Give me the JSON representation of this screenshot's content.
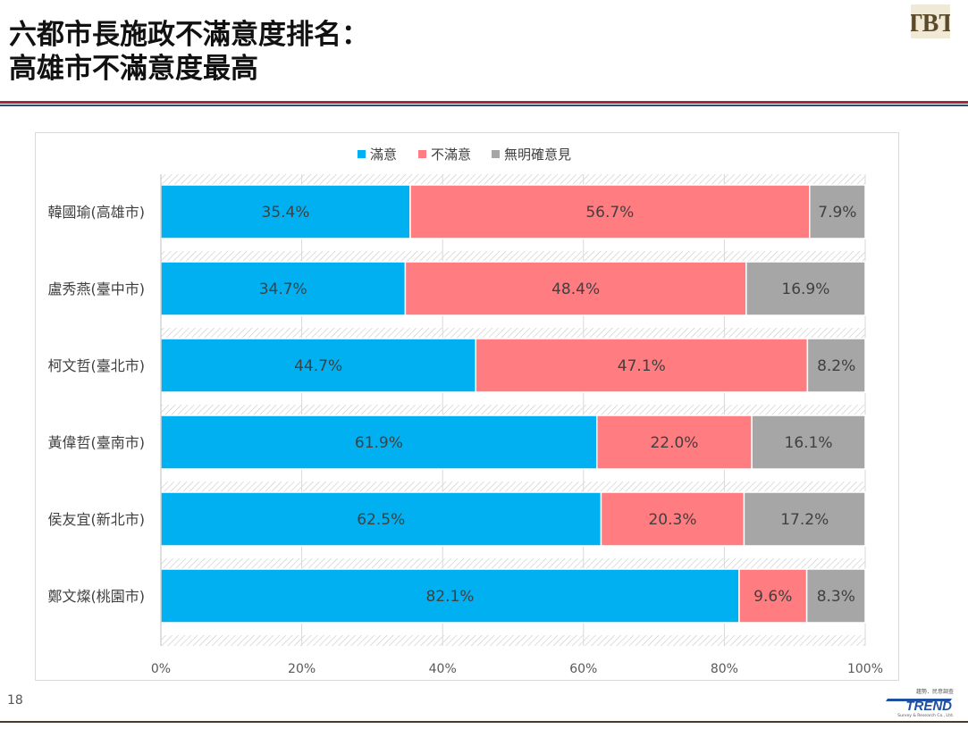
{
  "slide": {
    "title_line1": "六都市長施政不滿意度排名：",
    "title_line2": "高雄市不滿意度最高",
    "page_number": "18",
    "logo_text": "TBT",
    "trend_logo": {
      "top": "趨勢．民意調查",
      "main": "TREND",
      "sub": "Survey & Research Co., Ltd."
    }
  },
  "colors": {
    "satisfied": "#00b0f0",
    "dissatisfied": "#ff7c80",
    "no_opinion": "#a6a6a6",
    "accent_red": "#a3273e",
    "accent_blue": "#2c4a7a"
  },
  "chart_data": {
    "type": "bar",
    "orientation": "horizontal",
    "stacked": "percent",
    "categories": [
      "韓國瑜(高雄市)",
      "盧秀燕(臺中市)",
      "柯文哲(臺北市)",
      "黃偉哲(臺南市)",
      "侯友宜(新北市)",
      "鄭文燦(桃園市)"
    ],
    "series": [
      {
        "name": "滿意",
        "color": "#00b0f0",
        "values": [
          35.4,
          34.7,
          44.7,
          61.9,
          62.5,
          82.1
        ],
        "labels": [
          "35.4%",
          "34.7%",
          "44.7%",
          "61.9%",
          "62.5%",
          "82.1%"
        ]
      },
      {
        "name": "不滿意",
        "color": "#ff7c80",
        "values": [
          56.7,
          48.4,
          47.1,
          22.0,
          20.3,
          9.6
        ],
        "labels": [
          "56.7%",
          "48.4%",
          "47.1%",
          "22.0%",
          "20.3%",
          "9.6%"
        ]
      },
      {
        "name": "無明確意見",
        "color": "#a6a6a6",
        "values": [
          7.9,
          16.9,
          8.2,
          16.1,
          17.2,
          8.3
        ],
        "labels": [
          "7.9%",
          "16.9%",
          "8.2%",
          "16.1%",
          "17.2%",
          "8.3%"
        ]
      }
    ],
    "x_ticks": [
      "0%",
      "20%",
      "40%",
      "60%",
      "80%",
      "100%"
    ],
    "xlim": [
      0,
      100
    ],
    "legend_position": "top",
    "grid": true
  }
}
